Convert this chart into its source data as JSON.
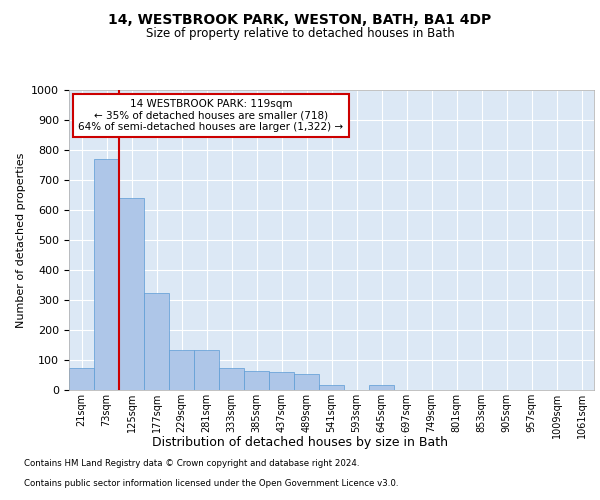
{
  "title1": "14, WESTBROOK PARK, WESTON, BATH, BA1 4DP",
  "title2": "Size of property relative to detached houses in Bath",
  "xlabel": "Distribution of detached houses by size in Bath",
  "ylabel": "Number of detached properties",
  "categories": [
    "21sqm",
    "73sqm",
    "125sqm",
    "177sqm",
    "229sqm",
    "281sqm",
    "333sqm",
    "385sqm",
    "437sqm",
    "489sqm",
    "541sqm",
    "593sqm",
    "645sqm",
    "697sqm",
    "749sqm",
    "801sqm",
    "853sqm",
    "905sqm",
    "957sqm",
    "1009sqm",
    "1061sqm"
  ],
  "values": [
    75,
    770,
    640,
    325,
    135,
    135,
    75,
    65,
    60,
    55,
    18,
    0,
    18,
    0,
    0,
    0,
    0,
    0,
    0,
    0,
    0
  ],
  "bar_color": "#aec6e8",
  "bar_edge_color": "#5b9bd5",
  "vline_position": 1.5,
  "vline_color": "#cc0000",
  "annotation_text": "14 WESTBROOK PARK: 119sqm\n← 35% of detached houses are smaller (718)\n64% of semi-detached houses are larger (1,322) →",
  "annotation_box_color": "#ffffff",
  "annotation_box_edge": "#cc0000",
  "plot_bg_color": "#dce8f5",
  "footer1": "Contains HM Land Registry data © Crown copyright and database right 2024.",
  "footer2": "Contains public sector information licensed under the Open Government Licence v3.0.",
  "ylim": [
    0,
    1000
  ],
  "yticks": [
    0,
    100,
    200,
    300,
    400,
    500,
    600,
    700,
    800,
    900,
    1000
  ]
}
